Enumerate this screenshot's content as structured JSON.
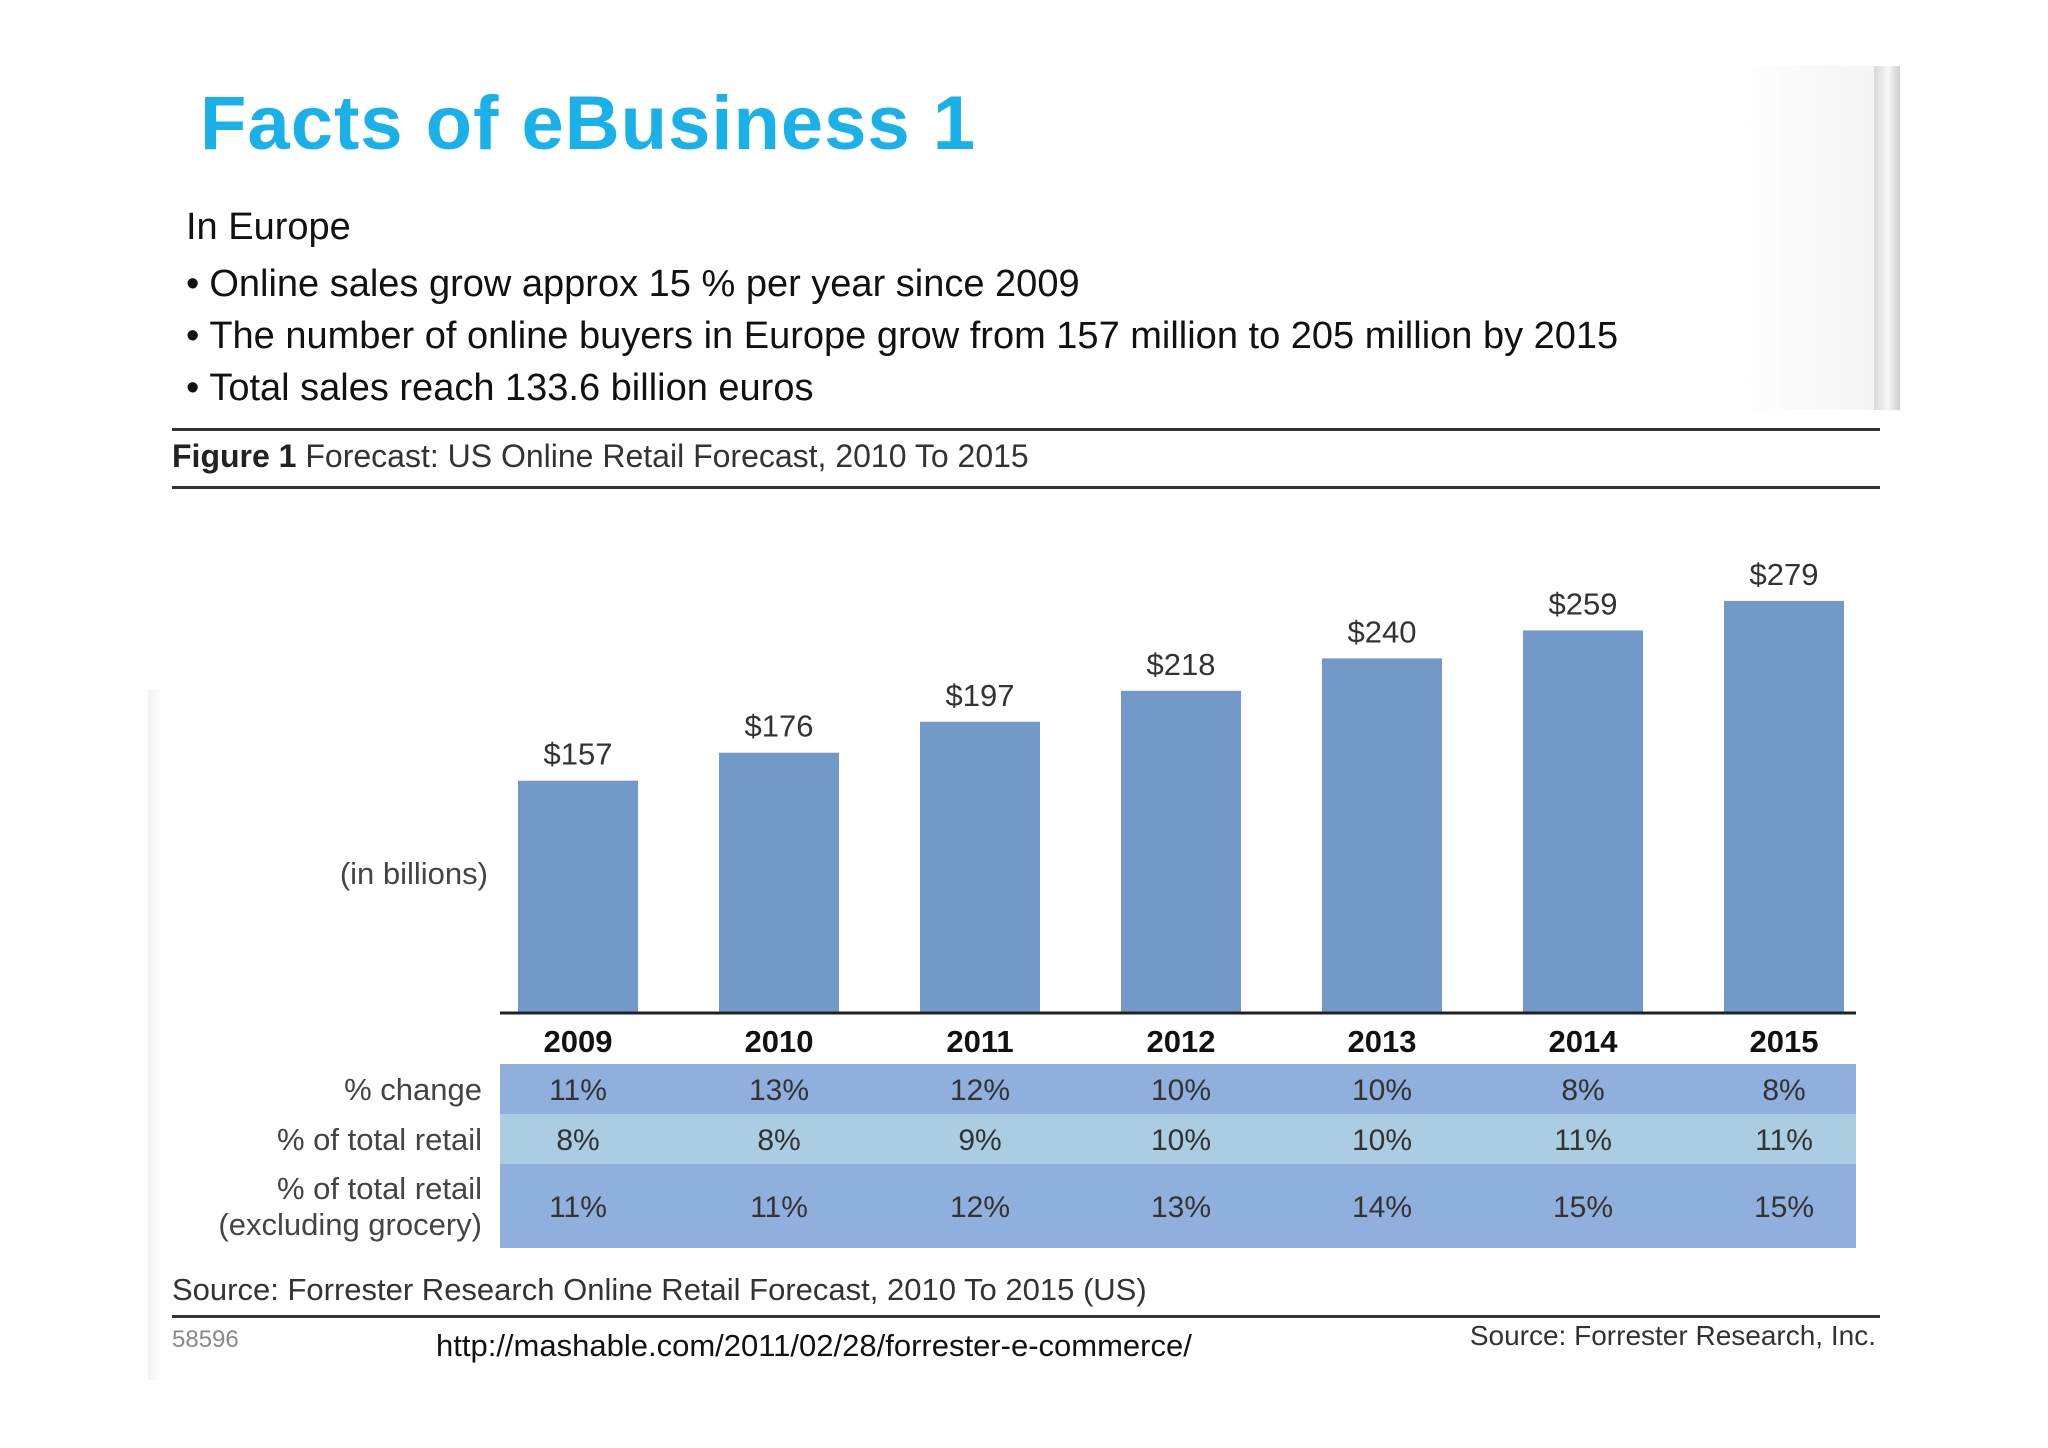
{
  "slide": {
    "title": "Facts of eBusiness 1",
    "subhead": "In Europe",
    "bullets": [
      "Online sales grow approx 15 % per year since 2009",
      "The number of online buyers in Europe grow from 157 million to 205 million by 2015",
      "Total sales reach 133.6 billion euros"
    ],
    "url": "http://mashable.com/2011/02/28/forrester-e-commerce/"
  },
  "figure": {
    "label": "Figure 1",
    "caption": "Forecast: US Online Retail Forecast, 2010 To 2015",
    "source": "Source: Forrester Research Online Retail Forecast, 2010 To 2015 (US)",
    "id": "58596",
    "credit": "Source: Forrester Research, Inc."
  },
  "chart_data": {
    "type": "bar",
    "categories": [
      "2009",
      "2010",
      "2011",
      "2012",
      "2013",
      "2014",
      "2015"
    ],
    "values": [
      157,
      176,
      197,
      218,
      240,
      259,
      279
    ],
    "value_labels": [
      "$157",
      "$176",
      "$197",
      "$218",
      "$240",
      "$259",
      "$279"
    ],
    "ylabel": "(in billions)",
    "ylim": [
      0,
      300
    ],
    "bar_color": "#7399c8",
    "table": {
      "rows": [
        {
          "label": [
            "% change"
          ],
          "values": [
            "11%",
            "13%",
            "12%",
            "10%",
            "10%",
            "8%",
            "8%"
          ],
          "color": "#8fb0dc"
        },
        {
          "label": [
            "% of total retail"
          ],
          "values": [
            "8%",
            "8%",
            "9%",
            "10%",
            "10%",
            "11%",
            "11%"
          ],
          "color": "#abcde2"
        },
        {
          "label": [
            "% of total retail",
            "(excluding grocery)"
          ],
          "values": [
            "11%",
            "11%",
            "12%",
            "13%",
            "14%",
            "15%",
            "15%"
          ],
          "color": "#8fb0dc"
        }
      ]
    }
  }
}
